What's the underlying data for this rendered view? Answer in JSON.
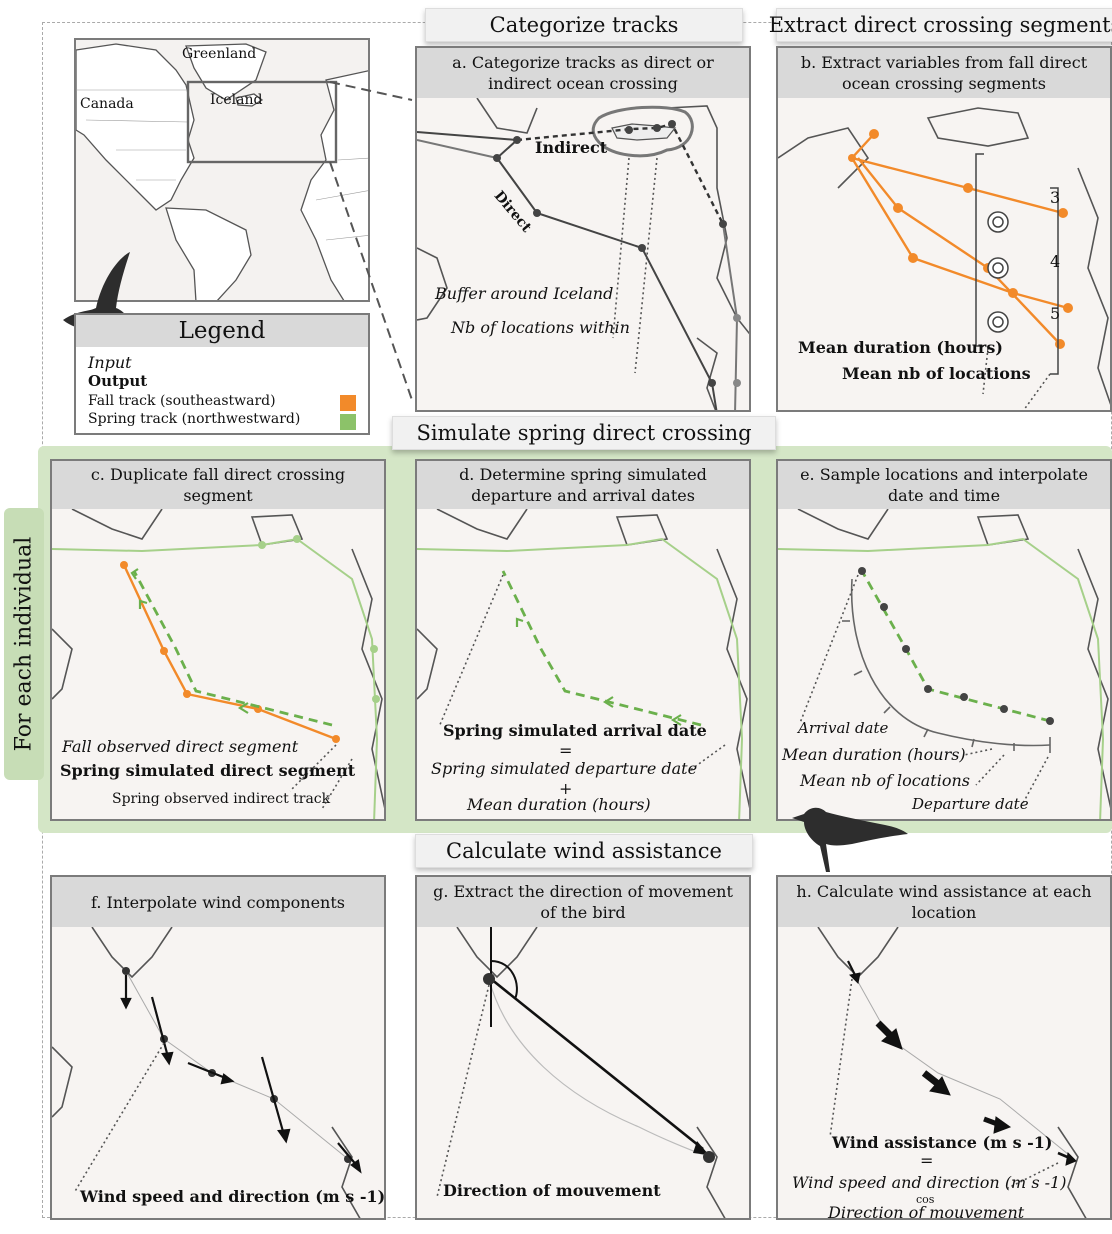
{
  "sections": {
    "categorize": "Categorize tracks",
    "extract": "Extract direct crossing segments",
    "simulate": "Simulate spring direct crossing",
    "wind": "Calculate wind assistance"
  },
  "side_label": "For each individual",
  "map_labels": {
    "greenland": "Greenland",
    "iceland": "Iceland",
    "canada": "Canada"
  },
  "legend": {
    "title": "Legend",
    "input": "Input",
    "output": "Output",
    "fall": "Fall track (southeastward)",
    "spring": "Spring track (northwestward)",
    "fall_color": "#f28a2a",
    "spring_color": "#8cc269"
  },
  "panels": {
    "a": {
      "title": "a. Categorize tracks as direct or indirect ocean crossing",
      "indirect": "Indirect",
      "direct": "Direct",
      "buffer": "Buffer around Iceland",
      "nb": "Nb of locations within"
    },
    "b": {
      "title": "b. Extract variables from fall direct ocean crossing segments",
      "n3": "3",
      "n4": "4",
      "n5": "5",
      "mean_dur": "Mean duration (hours)",
      "mean_nb": "Mean nb of locations"
    },
    "c": {
      "title": "c. Duplicate fall direct crossing segment",
      "fall_obs": "Fall observed direct segment",
      "spring_sim": "Spring simulated direct segment",
      "spring_obs": "Spring observed indirect track"
    },
    "d": {
      "title": "d. Determine spring simulated departure and arrival dates",
      "arrival": "Spring simulated arrival date",
      "eq": "=",
      "departure": "Spring simulated departure date",
      "plus": "+",
      "mean_dur": "Mean duration (hours)"
    },
    "e": {
      "title": "e. Sample locations and interpolate date and time",
      "arrival": "Arrival date",
      "mean_dur": "Mean duration (hours)",
      "mean_nb": "Mean nb of locations",
      "departure": "Departure date"
    },
    "f": {
      "title": "f. Interpolate wind components",
      "wind": "Wind speed and direction (m s -1)"
    },
    "g": {
      "title": "g. Extract the direction of movement of the bird",
      "dir": "Direction of mouvement"
    },
    "h": {
      "title": "h. Calculate wind assistance at each location",
      "wa": "Wind assistance  (m s -1)",
      "eq": "=",
      "ws": "Wind speed and direction (m s -1)",
      "cos": "cos",
      "dir": "Direction of mouvement"
    }
  }
}
